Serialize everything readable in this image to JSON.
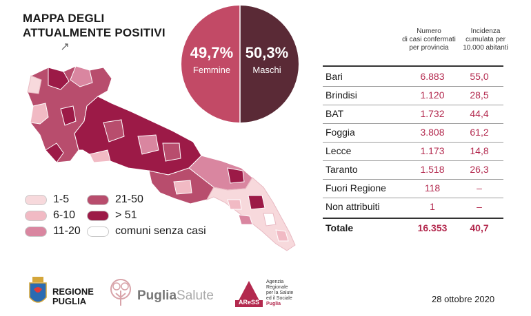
{
  "title": {
    "line1": "MAPPA DEGLI",
    "line2": "ATTUALMENTE POSITIVI"
  },
  "gender": {
    "female": {
      "pct": "49,7%",
      "label": "Femmine",
      "color": "#c24a66"
    },
    "male": {
      "pct": "50,3%",
      "label": "Maschi",
      "color": "#5a2a36"
    }
  },
  "table": {
    "headers": {
      "cases": [
        "Numero",
        "di casi confermati",
        "per provincia"
      ],
      "incidence": [
        "Incidenza",
        "cumulata per",
        "10.000 abitanti"
      ]
    },
    "rows": [
      {
        "name": "Bari",
        "cases": "6.883",
        "inc": "55,0"
      },
      {
        "name": "Brindisi",
        "cases": "1.120",
        "inc": "28,5"
      },
      {
        "name": "BAT",
        "cases": "1.732",
        "inc": "44,4"
      },
      {
        "name": "Foggia",
        "cases": "3.808",
        "inc": "61,2"
      },
      {
        "name": "Lecce",
        "cases": "1.173",
        "inc": "14,8"
      },
      {
        "name": "Taranto",
        "cases": "1.518",
        "inc": "26,3"
      },
      {
        "name": "Fuori Regione",
        "cases": "118",
        "inc": "–"
      },
      {
        "name": "Non attribuiti",
        "cases": "1",
        "inc": "–"
      }
    ],
    "total": {
      "name": "Totale",
      "cases": "16.353",
      "inc": "40,7"
    }
  },
  "legend": [
    {
      "label": "1-5",
      "color": "#f7d9dc"
    },
    {
      "label": "6-10",
      "color": "#f1bac4"
    },
    {
      "label": "11-20",
      "color": "#d986a0"
    },
    {
      "label": "21-50",
      "color": "#b84d6d"
    },
    {
      "label": "> 51",
      "color": "#9c1a47"
    },
    {
      "label": "comuni senza casi",
      "color": "#ffffff"
    }
  ],
  "footer": {
    "regione_line1": "REGIONE",
    "regione_line2": "PUGLIA",
    "puglia_salute_a": "Puglia",
    "puglia_salute_b": "Salute",
    "aress_logo": "AReSS",
    "aress_text": [
      "Agenzia",
      "Regionale",
      "per la Salute",
      "ed il Sociale",
      "Puglia"
    ],
    "date": "28 ottobre 2020"
  }
}
